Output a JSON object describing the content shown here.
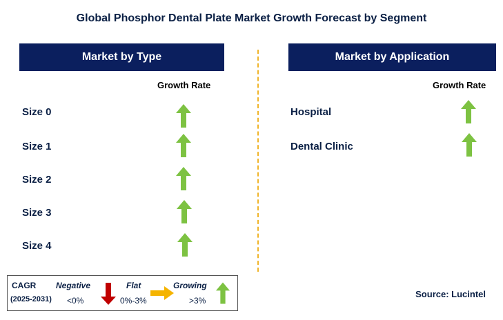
{
  "title": "Global Phosphor Dental Plate Market Growth Forecast by Segment",
  "left_panel": {
    "header": "Market by Type",
    "growth_rate_label": "Growth Rate",
    "rows": [
      {
        "label": "Size 0",
        "trend": "growing"
      },
      {
        "label": "Size 1",
        "trend": "growing"
      },
      {
        "label": "Size 2",
        "trend": "growing"
      },
      {
        "label": "Size 3",
        "trend": "growing"
      },
      {
        "label": "Size 4",
        "trend": "growing"
      }
    ]
  },
  "right_panel": {
    "header": "Market by Application",
    "growth_rate_label": "Growth Rate",
    "rows": [
      {
        "label": "Hospital",
        "trend": "growing"
      },
      {
        "label": "Dental Clinic",
        "trend": "growing"
      }
    ]
  },
  "legend": {
    "cagr_label": "CAGR",
    "period": "(2025-2031)",
    "negative_label": "Negative",
    "negative_range": "<0%",
    "flat_label": "Flat",
    "flat_range": "0%-3%",
    "growing_label": "Growing",
    "growing_range": ">3%"
  },
  "source": "Source: Lucintel",
  "colors": {
    "header_bg": "#0b1f5e",
    "growing": "#7dc242",
    "negative": "#c00000",
    "flat": "#f5b400",
    "divider": "#f0b429"
  },
  "icons": {
    "growing": "up-arrow-icon",
    "negative": "down-arrow-icon",
    "flat": "right-arrow-icon"
  }
}
